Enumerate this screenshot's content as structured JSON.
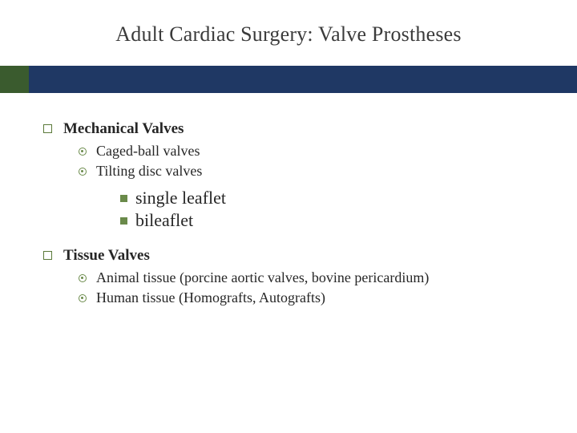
{
  "slide": {
    "title": "Adult Cardiac Surgery: Valve Prostheses",
    "title_color": "#3b3b3b",
    "title_fontsize": 26,
    "band_color": "#1f3864",
    "band_accent_color": "#3a5b2e",
    "background_color": "#ffffff",
    "bullet_border_color": "#5b7a3a",
    "level3_fill_color": "#6a8a4a",
    "sections": [
      {
        "heading": "Mechanical Valves",
        "items": [
          {
            "text": "Caged-ball valves"
          },
          {
            "text": "Tilting disc valves"
          }
        ],
        "subitems": [
          {
            "text": "single leaflet"
          },
          {
            "text": "bileaflet"
          }
        ]
      },
      {
        "heading": "Tissue Valves",
        "items": [
          {
            "text": "Animal tissue (porcine aortic valves, bovine pericardium)"
          },
          {
            "text": "Human tissue (Homografts, Autografts)"
          }
        ],
        "subitems": []
      }
    ]
  }
}
